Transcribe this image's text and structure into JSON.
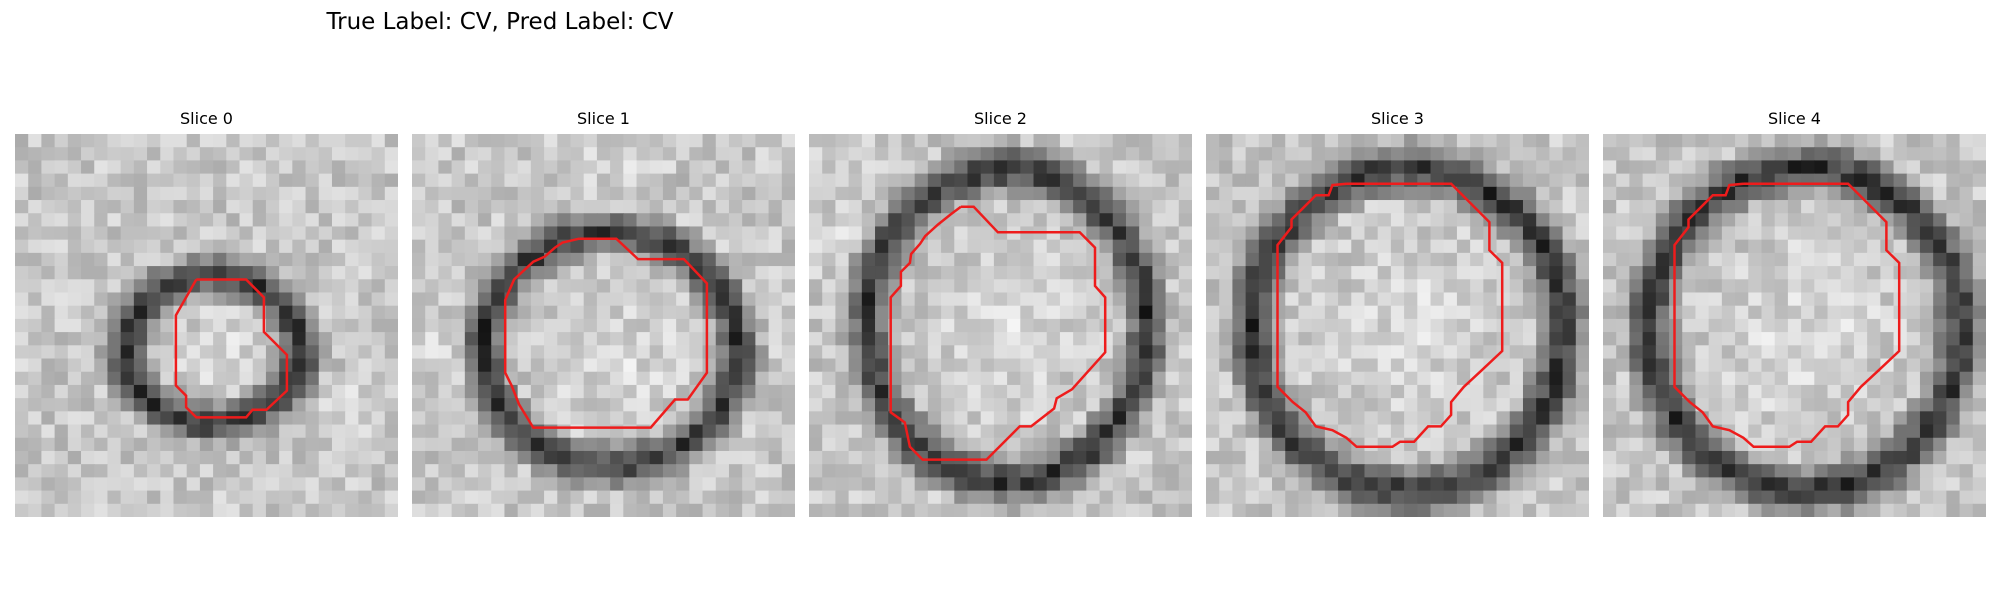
{
  "figure": {
    "title": "True Label: CV, Pred Label: CV"
  },
  "contour_color": "#ee1c1c",
  "panels": [
    {
      "title": "Slice 0"
    },
    {
      "title": "Slice 1"
    },
    {
      "title": "Slice 2"
    },
    {
      "title": "Slice 3"
    },
    {
      "title": "Slice 4"
    }
  ]
}
